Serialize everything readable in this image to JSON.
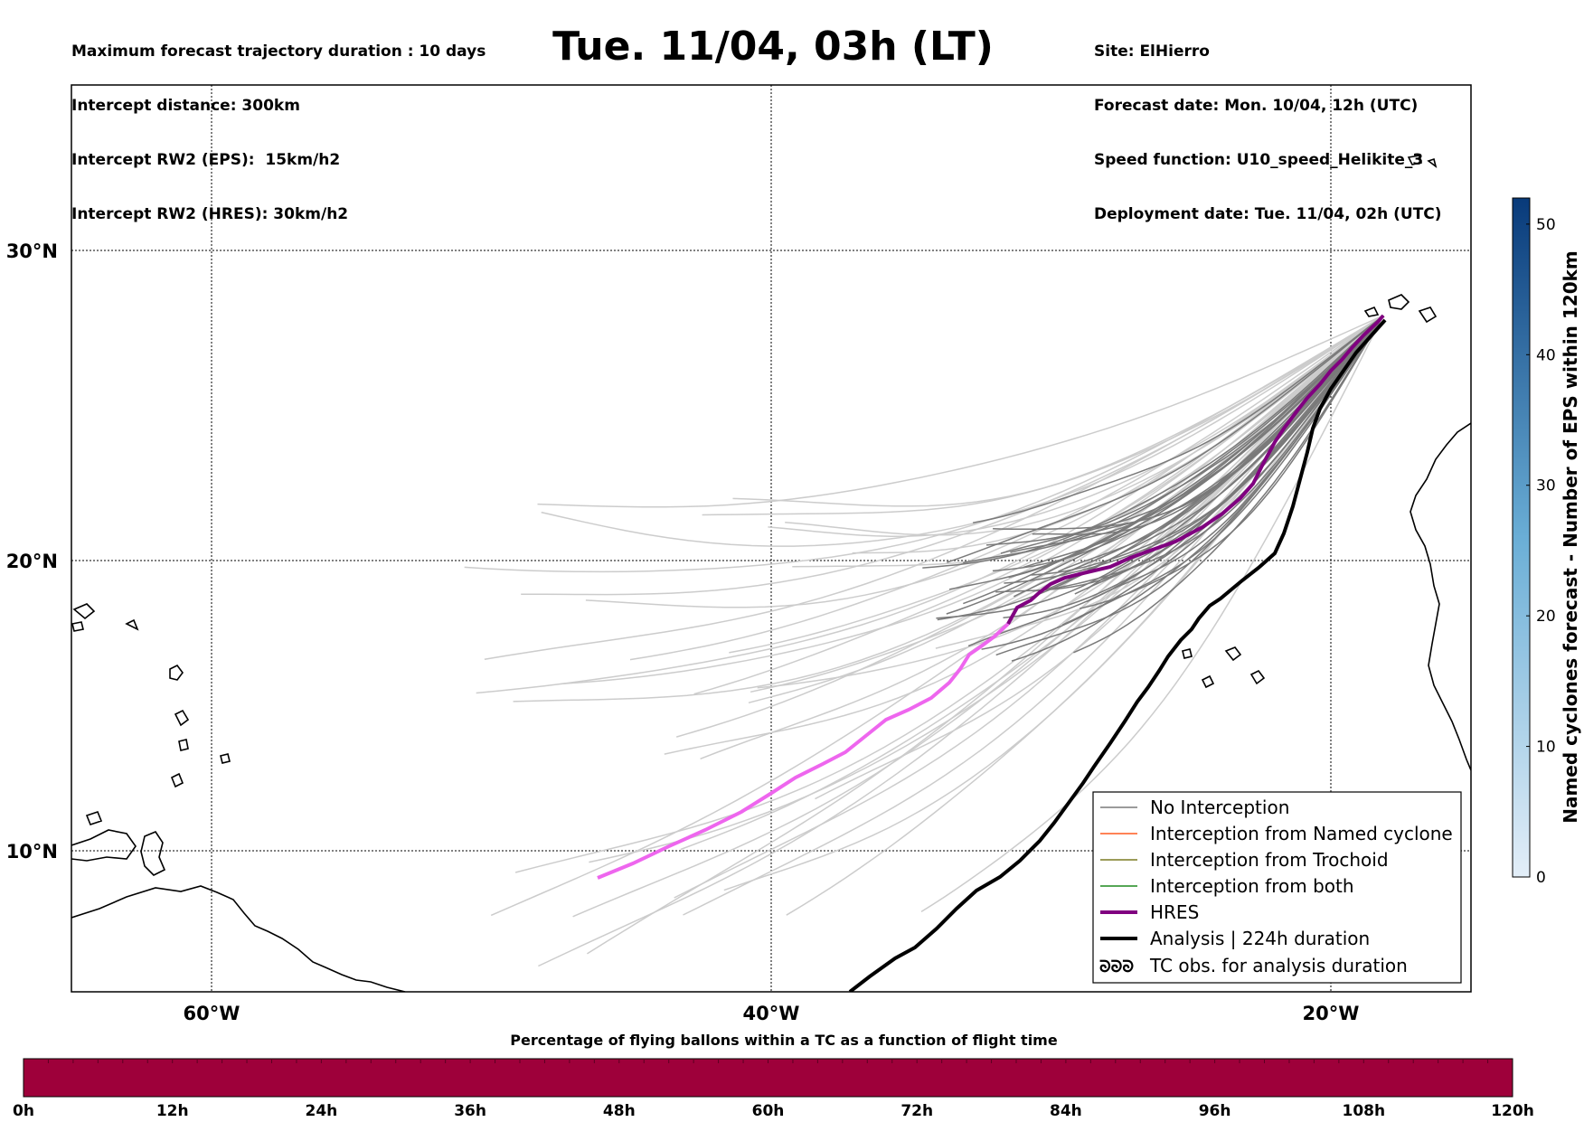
{
  "header": {
    "left_lines": [
      "Maximum forecast trajectory duration : 10 days",
      "Intercept distance: 300km",
      "Intercept RW2 (EPS):  15km/h2",
      "Intercept RW2 (HRES): 30km/h2"
    ],
    "title": "Tue. 11/04, 03h (LT)",
    "right_lines": [
      "Site: ElHierro",
      "Forecast date: Mon. 10/04, 12h (UTC)",
      "Speed function: U10_speed_Helikite_3",
      "Deployment date: Tue. 11/04, 02h (UTC)"
    ]
  },
  "map": {
    "lat_labels": [
      "30°N",
      "20°N",
      "10°N"
    ],
    "lon_labels": [
      "60°W",
      "40°W",
      "20°W"
    ],
    "lon_extent_west": [
      65,
      15
    ],
    "lat_extent_north": [
      5.3,
      35.3
    ],
    "launch_site": {
      "lon": -18.0,
      "lat": 27.7
    },
    "colors": {
      "no_interception": "#7a7a7a",
      "no_interception_light": "#cccccc",
      "named_cyclone": "#ff5a1f",
      "trochoid": "#7a7a22",
      "both": "#1f8a1f",
      "hres": "#800080",
      "hres_light": "#ee66ee",
      "analysis": "#000000"
    }
  },
  "legend": {
    "items": [
      {
        "label": "No Interception",
        "icon": "line-icon"
      },
      {
        "label": "Interception from Named cyclone",
        "icon": "line-icon"
      },
      {
        "label": "Interception from Trochoid",
        "icon": "line-icon"
      },
      {
        "label": "Interception from both",
        "icon": "line-icon"
      },
      {
        "label": "HRES",
        "icon": "line-icon"
      },
      {
        "label": "Analysis | 224h duration",
        "icon": "line-icon"
      },
      {
        "label": "TC obs. for analysis duration",
        "icon": "cyclone-symbol-icon",
        "symbol": "ᘐᘐᘐ"
      }
    ]
  },
  "colorbar_right": {
    "label": "Named cyclones forecast - Number of EPS within 120km",
    "ticks": [
      "0",
      "10",
      "20",
      "30",
      "40",
      "50"
    ],
    "max_value": 52,
    "color_low": "#e3eef8",
    "color_high": "#083a7a"
  },
  "colorbar_bottom": {
    "title": "Percentage of flying ballons within a TC as a function of flight time",
    "ticks": [
      "0h",
      "12h",
      "24h",
      "36h",
      "48h",
      "60h",
      "72h",
      "84h",
      "96h",
      "108h",
      "120h"
    ],
    "fill_color": "#9e003a"
  }
}
